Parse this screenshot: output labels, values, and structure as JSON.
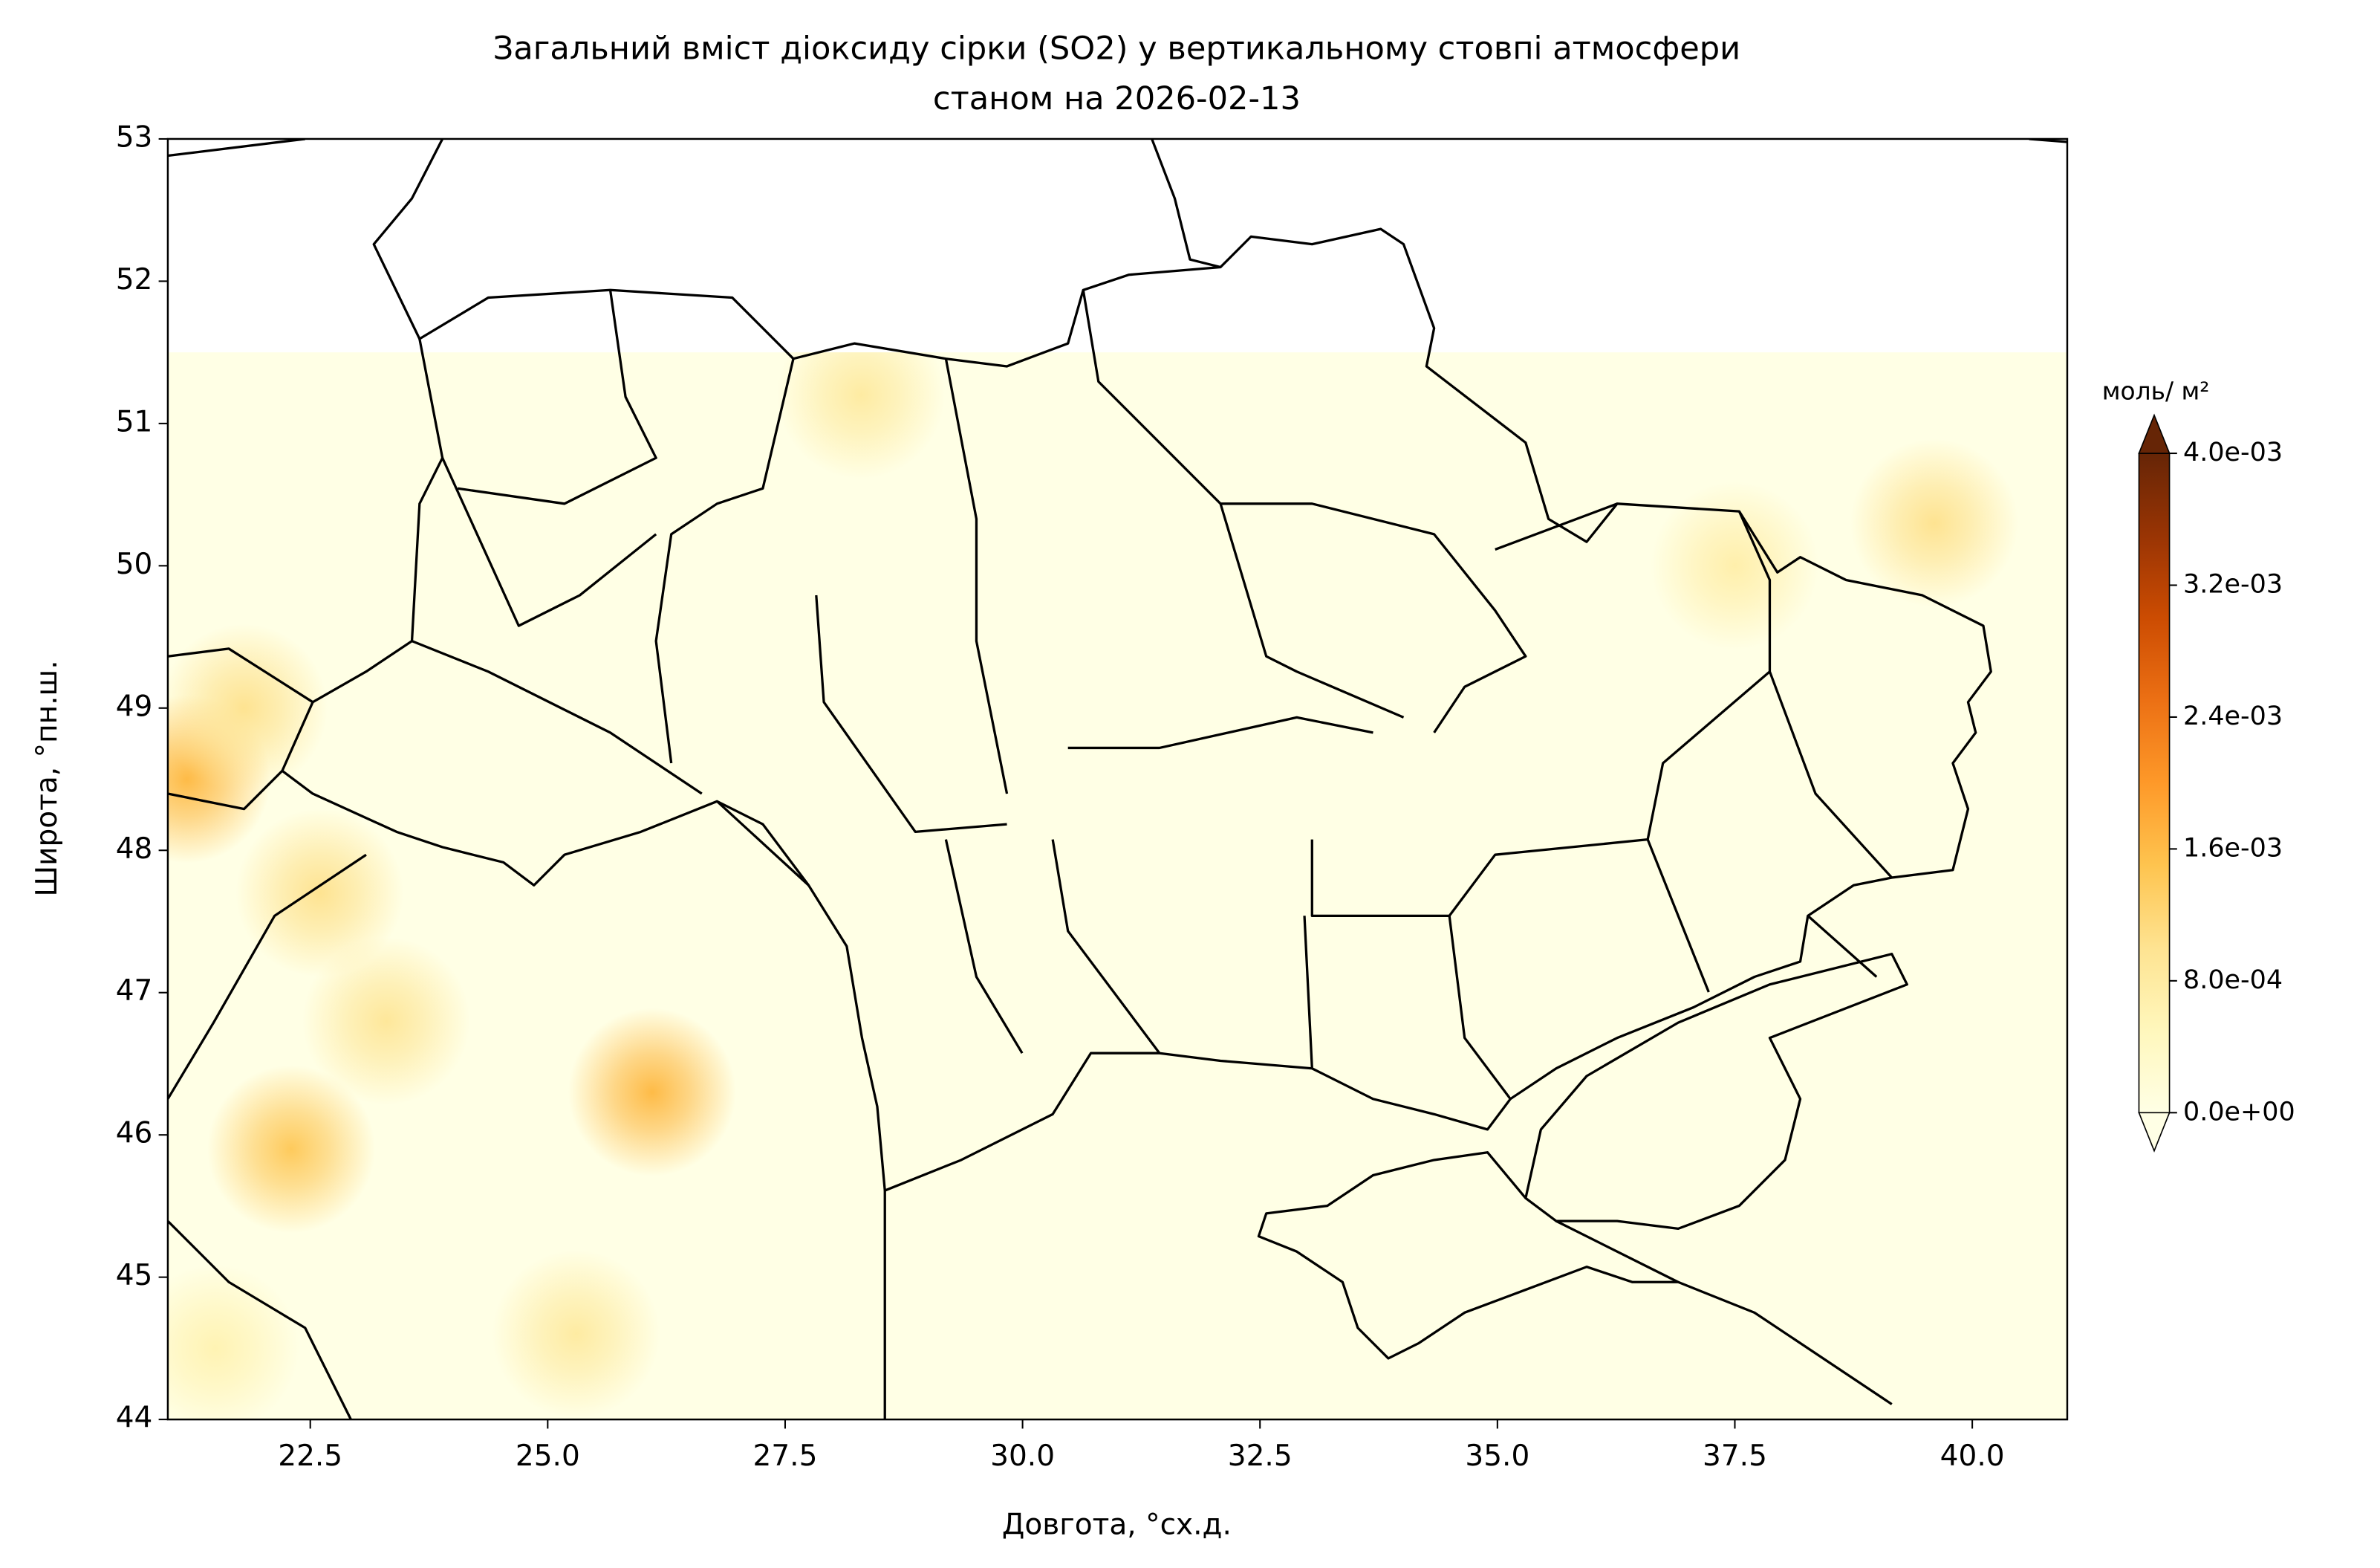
{
  "chart_data": {
    "type": "heatmap",
    "title": "Загальний вміст діоксиду сірки (SO2) у вертикальному стовпі атмосфери",
    "subtitle": "станом на 2026-02-13",
    "xlabel": "Довгота, °сх.д.",
    "ylabel": "Широта, °пн.ш.",
    "xlim": [
      21,
      41
    ],
    "ylim": [
      44,
      53
    ],
    "xticks": [
      22.5,
      {
        "value": 25,
        "label": "25.0"
      },
      27.5,
      {
        "value": 30,
        "label": "30.0"
      },
      32.5,
      {
        "value": 35,
        "label": "35.0"
      },
      37.5,
      {
        "value": 40,
        "label": "40.0"
      }
    ],
    "yticks": [
      44,
      45,
      46,
      47,
      48,
      49,
      50,
      51,
      52,
      53
    ],
    "field_lat_max": 51.5,
    "colorbar_label": "моль/ м²",
    "clim": [
      0,
      0.004
    ],
    "colormap": [
      "#ffffe5",
      "#fff7bc",
      "#fee391",
      "#fec44f",
      "#fe9929",
      "#ec7014",
      "#cc4c02",
      "#993404",
      "#662506"
    ],
    "cticks": [
      {
        "value": 0,
        "label": "0.0e+00"
      },
      {
        "value": 0.0008,
        "label": "8.0e-04"
      },
      {
        "value": 0.0016,
        "label": "1.6e-03"
      },
      {
        "value": 0.0024,
        "label": "2.4e-03"
      },
      {
        "value": 0.0032,
        "label": "3.2e-03"
      },
      {
        "value": 0.004,
        "label": "4.0e-03"
      }
    ],
    "hotspots": {
      "lon": [
        21.2,
        22.3,
        26.1,
        23.3,
        22.6,
        28.3,
        39.6,
        37.5,
        25.3,
        21.5,
        21.8
      ],
      "lat": [
        48.5,
        45.9,
        46.3,
        46.8,
        47.7,
        51.2,
        50.3,
        50.0,
        44.6,
        44.5,
        49.0
      ],
      "values": [
        0.0016,
        0.0014,
        0.0016,
        0.0009,
        0.001,
        0.0008,
        0.001,
        0.0007,
        0.0008,
        0.0006,
        0.001
      ]
    }
  }
}
